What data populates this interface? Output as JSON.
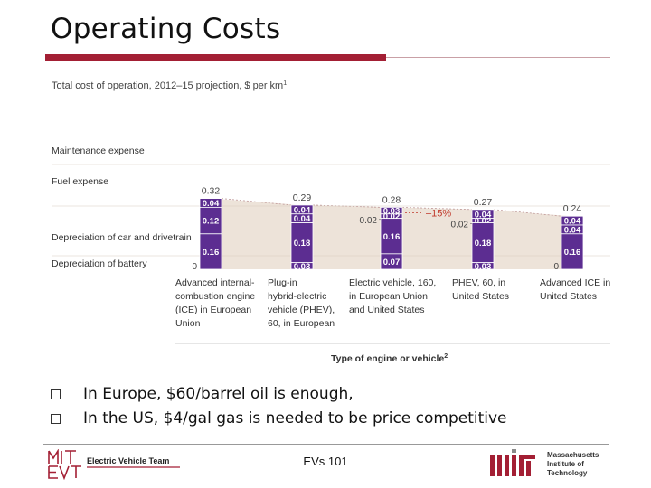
{
  "slide": {
    "title": "Operating Costs",
    "bullets": [
      "In Europe, $60/barrel oil is enough,",
      "In the US, $4/gal gas is needed to be price competitive"
    ]
  },
  "footer": {
    "left_logo_text": "MIT EVT",
    "left_team_text": "Electric Vehicle Team",
    "center_text": "EVs 101",
    "right_logo_lines": [
      "Massachusetts",
      "Institute of",
      "Technology"
    ]
  },
  "colors": {
    "brand_red": "#a31f34",
    "bar_purple": "#5c2d91",
    "band_beige": "#ede3d9"
  },
  "chart_data": {
    "type": "bar",
    "stacked": true,
    "title": "Total cost of operation, 2012–15 projection, $ per km",
    "title_superscript": "1",
    "xlabel": "Type of engine or vehicle",
    "xlabel_superscript": "2",
    "categories": [
      [
        "Advanced internal-",
        "combustion engine",
        "(ICE) in European",
        "Union"
      ],
      [
        "Plug-in",
        "hybrid-electric",
        "vehicle (PHEV),",
        "60, in European"
      ],
      [
        "Electric vehicle, 160,",
        "in European Union",
        "and United States"
      ],
      [
        "PHEV, 60, in",
        "United States"
      ],
      [
        "Advanced ICE in",
        "United States"
      ]
    ],
    "series": [
      {
        "name": "Maintenance expense",
        "values": [
          0.04,
          0.04,
          0.03,
          0.04,
          0.04
        ]
      },
      {
        "name": "Fuel expense",
        "values": [
          0.12,
          0.04,
          0.02,
          0.02,
          0.04
        ]
      },
      {
        "name": "Depreciation of car and drivetrain",
        "values": [
          0.16,
          0.18,
          0.16,
          0.18,
          0.16
        ]
      },
      {
        "name": "Depreciation of battery",
        "values": [
          0,
          0.03,
          0.07,
          0.03,
          0
        ]
      }
    ],
    "segment_labels": [
      [
        "0.04",
        "0.12",
        "0.16",
        "0"
      ],
      [
        "0.04",
        "0.04",
        "0.18",
        "0.03"
      ],
      [
        "0.03",
        "0.02",
        "0.16",
        "0.07"
      ],
      [
        "0.04",
        "0.02",
        "0.18",
        "0.03"
      ],
      [
        "0.04",
        "0.04",
        "0.16",
        "0"
      ]
    ],
    "totals": [
      "0.32",
      "0.29",
      "0.28",
      "0.27",
      "0.24"
    ],
    "annotation": "–15%",
    "ylim": [
      0,
      0.32
    ]
  }
}
